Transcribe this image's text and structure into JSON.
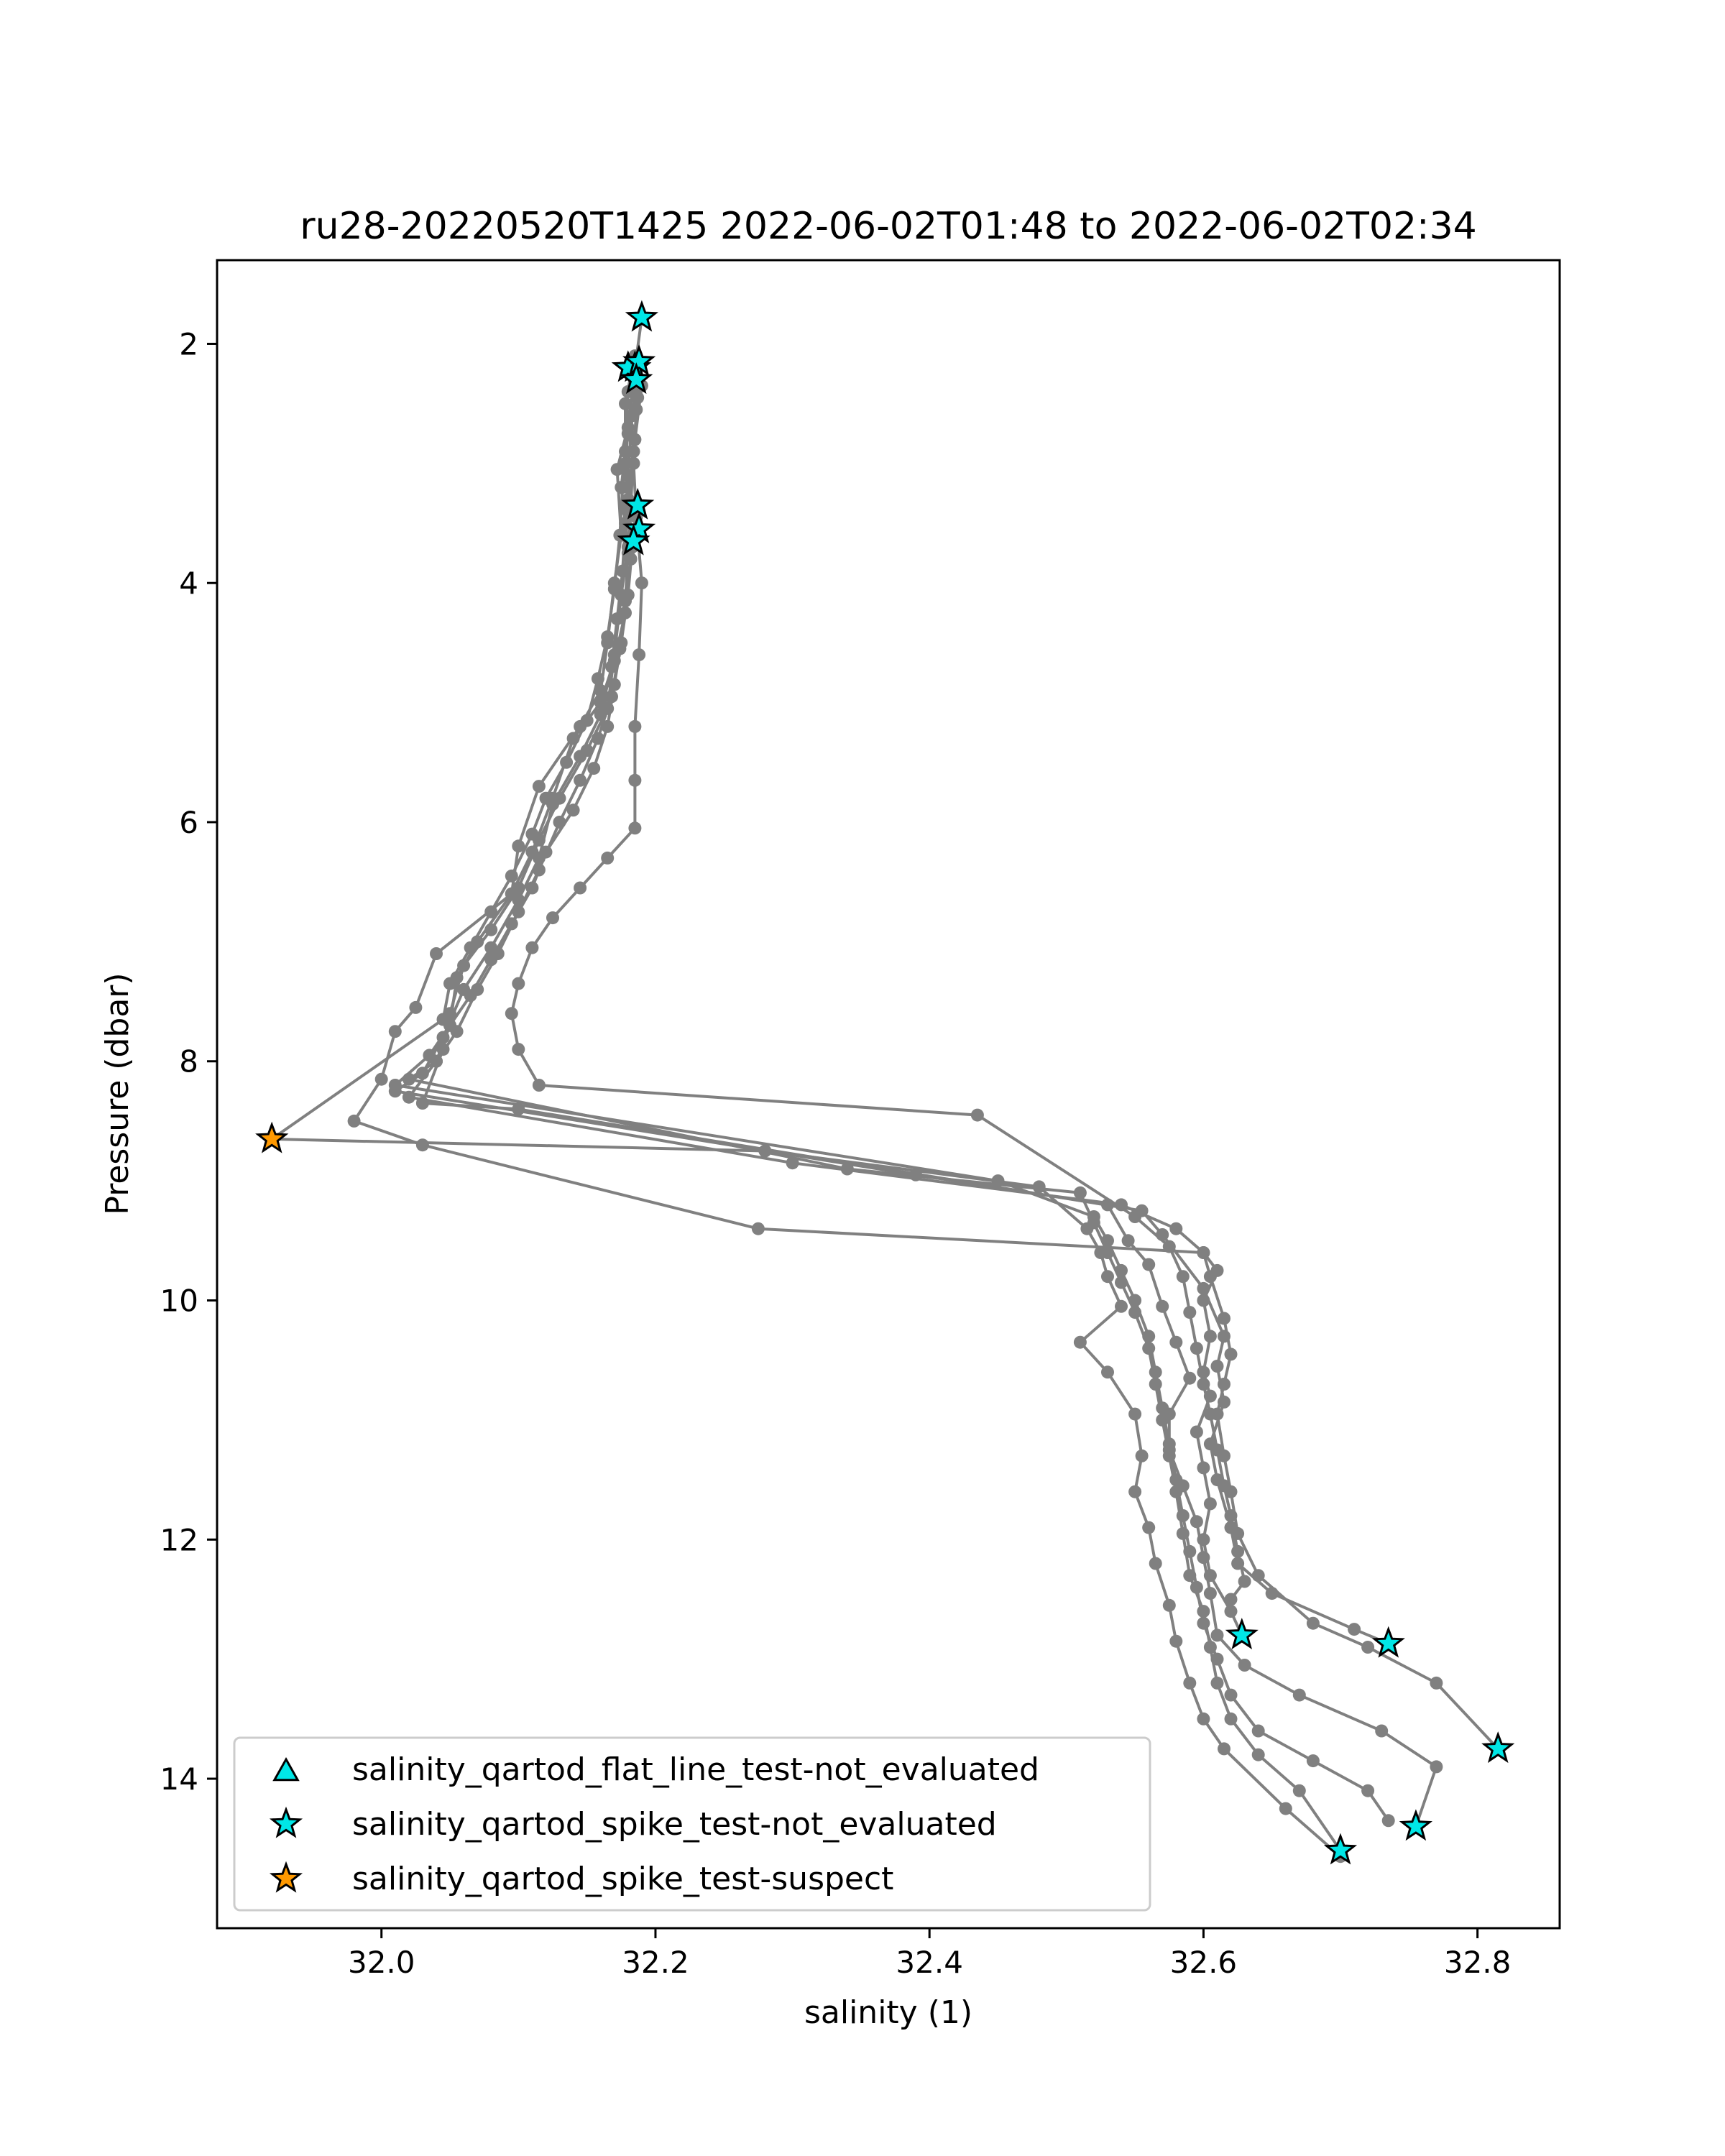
{
  "chart_data": {
    "type": "scatter",
    "title": "ru28-20220520T1425 2022-06-02T01:48 to 2022-06-02T02:34",
    "xlabel": "salinity (1)",
    "ylabel": "Pressure (dbar)",
    "xlim": [
      31.88,
      32.86
    ],
    "ylim": [
      15.25,
      1.3
    ],
    "y_inverted": true,
    "xticks": [
      "32.0",
      "32.2",
      "32.4",
      "32.6",
      "32.8"
    ],
    "xtick_values": [
      32.0,
      32.2,
      32.4,
      32.6,
      32.8
    ],
    "yticks": [
      "2",
      "4",
      "6",
      "8",
      "10",
      "12",
      "14"
    ],
    "ytick_values": [
      2,
      4,
      6,
      8,
      10,
      12,
      14
    ],
    "grid": false,
    "line_color": "#808080",
    "profiles": [
      [
        [
          32.19,
          1.78
        ],
        [
          32.185,
          2.2
        ],
        [
          32.18,
          2.7
        ],
        [
          32.172,
          3.05
        ],
        [
          32.175,
          3.6
        ],
        [
          32.17,
          4.0
        ],
        [
          32.165,
          4.5
        ],
        [
          32.16,
          4.9
        ],
        [
          32.145,
          5.2
        ],
        [
          32.115,
          5.7
        ],
        [
          32.1,
          6.2
        ],
        [
          32.095,
          6.6
        ],
        [
          32.04,
          7.1
        ],
        [
          32.025,
          7.55
        ],
        [
          32.01,
          7.75
        ],
        [
          32.0,
          8.15
        ],
        [
          31.98,
          8.5
        ],
        [
          32.03,
          8.7
        ],
        [
          32.275,
          9.4
        ],
        [
          32.6,
          9.6
        ],
        [
          32.61,
          9.75
        ],
        [
          32.6,
          10.0
        ],
        [
          32.605,
          10.3
        ],
        [
          32.6,
          10.6
        ],
        [
          32.605,
          10.8
        ],
        [
          32.595,
          11.1
        ],
        [
          32.6,
          11.4
        ],
        [
          32.605,
          11.7
        ],
        [
          32.6,
          12.0
        ],
        [
          32.605,
          12.3
        ],
        [
          32.62,
          12.6
        ],
        [
          32.628,
          12.8
        ]
      ],
      [
        [
          32.185,
          2.1
        ],
        [
          32.18,
          2.4
        ],
        [
          32.178,
          2.9
        ],
        [
          32.175,
          3.2
        ],
        [
          32.18,
          3.7
        ],
        [
          32.175,
          4.1
        ],
        [
          32.17,
          4.6
        ],
        [
          32.165,
          5.05
        ],
        [
          32.15,
          5.4
        ],
        [
          32.13,
          5.8
        ],
        [
          32.115,
          6.15
        ],
        [
          32.1,
          6.55
        ],
        [
          32.08,
          6.9
        ],
        [
          32.06,
          7.2
        ],
        [
          32.05,
          7.6
        ],
        [
          32.045,
          7.9
        ],
        [
          32.03,
          8.35
        ],
        [
          32.1,
          8.4
        ],
        [
          32.555,
          9.25
        ],
        [
          32.57,
          9.45
        ],
        [
          32.6,
          9.9
        ],
        [
          32.615,
          10.3
        ],
        [
          32.61,
          10.55
        ],
        [
          32.615,
          10.85
        ],
        [
          32.605,
          11.2
        ],
        [
          32.61,
          11.5
        ],
        [
          32.62,
          11.9
        ],
        [
          32.625,
          12.2
        ],
        [
          32.65,
          12.45
        ],
        [
          32.71,
          12.75
        ],
        [
          32.735,
          12.87
        ]
      ],
      [
        [
          32.183,
          2.2
        ],
        [
          32.178,
          2.5
        ],
        [
          32.178,
          3.0
        ],
        [
          32.18,
          3.4
        ],
        [
          32.182,
          3.8
        ],
        [
          32.178,
          4.25
        ],
        [
          32.17,
          4.65
        ],
        [
          32.16,
          5.0
        ],
        [
          32.14,
          5.3
        ],
        [
          32.125,
          5.8
        ],
        [
          32.11,
          6.25
        ],
        [
          32.095,
          6.6
        ],
        [
          32.07,
          7.0
        ],
        [
          32.055,
          7.3
        ],
        [
          32.05,
          7.7
        ],
        [
          32.04,
          8.0
        ],
        [
          32.02,
          8.3
        ],
        [
          32.3,
          8.85
        ],
        [
          32.54,
          9.2
        ],
        [
          32.58,
          9.4
        ],
        [
          32.6,
          9.6
        ],
        [
          32.605,
          9.8
        ],
        [
          32.615,
          10.15
        ],
        [
          32.62,
          10.45
        ],
        [
          32.615,
          10.7
        ],
        [
          32.61,
          10.95
        ],
        [
          32.615,
          11.3
        ],
        [
          32.62,
          11.6
        ],
        [
          32.625,
          11.95
        ],
        [
          32.64,
          12.3
        ],
        [
          32.68,
          12.7
        ],
        [
          32.72,
          12.9
        ],
        [
          32.77,
          13.2
        ],
        [
          32.815,
          13.75
        ]
      ],
      [
        [
          32.186,
          2.3
        ],
        [
          32.183,
          2.6
        ],
        [
          32.18,
          3.1
        ],
        [
          32.178,
          3.5
        ],
        [
          32.176,
          3.9
        ],
        [
          32.172,
          4.3
        ],
        [
          32.168,
          4.7
        ],
        [
          32.16,
          5.1
        ],
        [
          32.145,
          5.45
        ],
        [
          32.125,
          5.85
        ],
        [
          32.115,
          6.3
        ],
        [
          32.1,
          6.65
        ],
        [
          32.08,
          7.05
        ],
        [
          32.06,
          7.4
        ],
        [
          32.045,
          7.8
        ],
        [
          32.03,
          8.1
        ],
        [
          32.01,
          8.25
        ],
        [
          32.39,
          8.95
        ],
        [
          32.53,
          9.2
        ],
        [
          32.545,
          9.5
        ],
        [
          32.56,
          9.7
        ],
        [
          32.57,
          10.05
        ],
        [
          32.58,
          10.35
        ],
        [
          32.59,
          10.65
        ],
        [
          32.575,
          10.95
        ],
        [
          32.575,
          11.25
        ],
        [
          32.585,
          11.55
        ],
        [
          32.595,
          11.85
        ],
        [
          32.6,
          12.15
        ],
        [
          32.605,
          12.45
        ],
        [
          32.61,
          12.8
        ],
        [
          32.63,
          13.05
        ],
        [
          32.67,
          13.3
        ],
        [
          32.73,
          13.6
        ],
        [
          32.77,
          13.9
        ],
        [
          32.755,
          14.4
        ]
      ],
      [
        [
          32.19,
          2.35
        ],
        [
          32.185,
          2.8
        ],
        [
          32.18,
          3.3
        ],
        [
          32.183,
          3.7
        ],
        [
          32.18,
          4.1
        ],
        [
          32.175,
          4.5
        ],
        [
          32.17,
          4.85
        ],
        [
          32.165,
          5.2
        ],
        [
          32.155,
          5.55
        ],
        [
          32.14,
          5.9
        ],
        [
          32.12,
          6.25
        ],
        [
          32.11,
          6.55
        ],
        [
          32.095,
          6.85
        ],
        [
          32.08,
          7.15
        ],
        [
          32.065,
          7.45
        ],
        [
          32.05,
          7.7
        ],
        [
          32.035,
          7.95
        ],
        [
          32.01,
          8.2
        ],
        [
          32.45,
          9.0
        ],
        [
          32.52,
          9.3
        ],
        [
          32.53,
          9.5
        ],
        [
          32.54,
          9.75
        ],
        [
          32.55,
          10.0
        ],
        [
          32.56,
          10.3
        ],
        [
          32.565,
          10.6
        ],
        [
          32.57,
          10.9
        ],
        [
          32.575,
          11.2
        ],
        [
          32.58,
          11.5
        ],
        [
          32.585,
          11.8
        ],
        [
          32.59,
          12.1
        ],
        [
          32.595,
          12.4
        ],
        [
          32.6,
          12.7
        ],
        [
          32.61,
          13.0
        ],
        [
          32.62,
          13.3
        ],
        [
          32.64,
          13.6
        ],
        [
          32.68,
          13.85
        ],
        [
          32.72,
          14.1
        ],
        [
          32.735,
          14.35
        ]
      ],
      [
        [
          32.187,
          2.45
        ],
        [
          32.184,
          2.9
        ],
        [
          32.182,
          3.35
        ],
        [
          32.18,
          3.75
        ],
        [
          32.178,
          4.15
        ],
        [
          32.174,
          4.55
        ],
        [
          32.168,
          4.95
        ],
        [
          32.158,
          5.3
        ],
        [
          32.145,
          5.65
        ],
        [
          32.13,
          6.0
        ],
        [
          32.115,
          6.4
        ],
        [
          32.1,
          6.75
        ],
        [
          32.085,
          7.1
        ],
        [
          32.07,
          7.4
        ],
        [
          32.055,
          7.75
        ],
        [
          32.04,
          8.0
        ],
        [
          32.02,
          8.15
        ],
        [
          32.34,
          8.9
        ],
        [
          32.51,
          9.1
        ],
        [
          32.52,
          9.35
        ],
        [
          32.53,
          9.6
        ],
        [
          32.54,
          9.85
        ],
        [
          32.55,
          10.1
        ],
        [
          32.56,
          10.4
        ],
        [
          32.565,
          10.7
        ],
        [
          32.57,
          11.0
        ],
        [
          32.575,
          11.3
        ],
        [
          32.58,
          11.6
        ],
        [
          32.585,
          11.95
        ],
        [
          32.59,
          12.3
        ],
        [
          32.6,
          12.6
        ],
        [
          32.605,
          12.9
        ],
        [
          32.61,
          13.2
        ],
        [
          32.62,
          13.5
        ],
        [
          32.64,
          13.8
        ],
        [
          32.67,
          14.1
        ],
        [
          32.7,
          14.6
        ]
      ],
      [
        [
          32.188,
          2.15
        ],
        [
          32.186,
          2.55
        ],
        [
          32.184,
          3.0
        ],
        [
          32.186,
          3.45
        ],
        [
          32.19,
          4.0
        ],
        [
          32.188,
          4.6
        ],
        [
          32.185,
          5.2
        ],
        [
          32.185,
          5.65
        ],
        [
          32.185,
          6.05
        ],
        [
          32.165,
          6.3
        ],
        [
          32.145,
          6.55
        ],
        [
          32.125,
          6.8
        ],
        [
          32.11,
          7.05
        ],
        [
          32.1,
          7.35
        ],
        [
          32.095,
          7.6
        ],
        [
          32.1,
          7.9
        ],
        [
          32.115,
          8.2
        ],
        [
          32.435,
          8.45
        ],
        [
          32.55,
          9.3
        ],
        [
          32.575,
          9.55
        ],
        [
          32.585,
          9.8
        ],
        [
          32.59,
          10.1
        ],
        [
          32.595,
          10.4
        ],
        [
          32.6,
          10.7
        ],
        [
          32.605,
          10.95
        ],
        [
          32.61,
          11.25
        ],
        [
          32.615,
          11.55
        ],
        [
          32.62,
          11.8
        ],
        [
          32.625,
          12.1
        ],
        [
          32.63,
          12.35
        ],
        [
          32.62,
          12.5
        ]
      ],
      [
        [
          32.184,
          2.25
        ],
        [
          32.18,
          2.75
        ],
        [
          32.176,
          3.2
        ],
        [
          32.174,
          3.6
        ],
        [
          32.17,
          4.05
        ],
        [
          32.165,
          4.45
        ],
        [
          32.158,
          4.8
        ],
        [
          32.15,
          5.15
        ],
        [
          32.135,
          5.5
        ],
        [
          32.12,
          5.8
        ],
        [
          32.11,
          6.1
        ],
        [
          32.095,
          6.45
        ],
        [
          32.08,
          6.75
        ],
        [
          32.065,
          7.05
        ],
        [
          32.05,
          7.35
        ],
        [
          32.045,
          7.65
        ],
        [
          31.92,
          8.65
        ],
        [
          32.28,
          8.75
        ],
        [
          32.48,
          9.05
        ],
        [
          32.515,
          9.4
        ],
        [
          32.525,
          9.6
        ],
        [
          32.53,
          9.8
        ],
        [
          32.54,
          10.05
        ],
        [
          32.51,
          10.35
        ],
        [
          32.53,
          10.6
        ],
        [
          32.55,
          10.95
        ],
        [
          32.555,
          11.3
        ],
        [
          32.55,
          11.6
        ],
        [
          32.56,
          11.9
        ],
        [
          32.565,
          12.2
        ],
        [
          32.575,
          12.55
        ],
        [
          32.58,
          12.85
        ],
        [
          32.59,
          13.2
        ],
        [
          32.6,
          13.5
        ],
        [
          32.615,
          13.75
        ],
        [
          32.66,
          14.25
        ],
        [
          32.7,
          14.65
        ]
      ]
    ],
    "markers": [
      {
        "x": 32.19,
        "y": 1.78,
        "kind": "star",
        "color": "#00e6e6"
      },
      {
        "x": 32.185,
        "y": 2.2,
        "kind": "star",
        "color": "#00e6e6"
      },
      {
        "x": 32.18,
        "y": 2.2,
        "kind": "star",
        "color": "#00e6e6"
      },
      {
        "x": 32.188,
        "y": 2.15,
        "kind": "star",
        "color": "#00e6e6"
      },
      {
        "x": 32.186,
        "y": 2.3,
        "kind": "star",
        "color": "#00e6e6"
      },
      {
        "x": 32.187,
        "y": 3.35,
        "kind": "star",
        "color": "#00e6e6"
      },
      {
        "x": 32.188,
        "y": 3.55,
        "kind": "star",
        "color": "#00e6e6"
      },
      {
        "x": 32.184,
        "y": 3.65,
        "kind": "star",
        "color": "#00e6e6"
      },
      {
        "x": 32.628,
        "y": 12.8,
        "kind": "star",
        "color": "#00e6e6"
      },
      {
        "x": 32.735,
        "y": 12.87,
        "kind": "star",
        "color": "#00e6e6"
      },
      {
        "x": 32.815,
        "y": 13.75,
        "kind": "star",
        "color": "#00e6e6"
      },
      {
        "x": 32.755,
        "y": 14.4,
        "kind": "star",
        "color": "#00e6e6"
      },
      {
        "x": 32.7,
        "y": 14.6,
        "kind": "star",
        "color": "#00e6e6"
      },
      {
        "x": 31.92,
        "y": 8.65,
        "kind": "star",
        "color": "#ff9900"
      }
    ],
    "legend_position": "lower-left",
    "legend": [
      {
        "label": "salinity_qartod_flat_line_test-not_evaluated",
        "marker": "triangle",
        "color": "#00e6e6"
      },
      {
        "label": "salinity_qartod_spike_test-not_evaluated",
        "marker": "star",
        "color": "#00e6e6"
      },
      {
        "label": "salinity_qartod_spike_test-suspect",
        "marker": "star",
        "color": "#ff9900"
      }
    ]
  }
}
